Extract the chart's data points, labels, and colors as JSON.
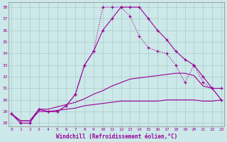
{
  "xlabel": "Windchill (Refroidissement éolien,°C)",
  "bg_color": "#cce8e8",
  "grid_color": "#aacccc",
  "line_color": "#990099",
  "hours": [
    0,
    1,
    2,
    3,
    4,
    5,
    6,
    7,
    8,
    9,
    10,
    11,
    12,
    13,
    14,
    15,
    16,
    17,
    18,
    19,
    20,
    21,
    22,
    23
  ],
  "line1": [
    28.8,
    28.0,
    28.0,
    29.2,
    29.0,
    29.0,
    29.5,
    30.5,
    33.0,
    34.2,
    38.0,
    38.0,
    38.0,
    37.2,
    35.5,
    34.5,
    34.2,
    34.0,
    33.0,
    31.5,
    33.0,
    31.5,
    31.0,
    30.0
  ],
  "line2": [
    28.8,
    28.0,
    28.0,
    29.2,
    29.0,
    29.0,
    29.5,
    30.5,
    33.0,
    34.2,
    36.0,
    37.0,
    38.0,
    38.0,
    38.0,
    37.0,
    36.0,
    35.2,
    34.2,
    33.5,
    33.0,
    32.0,
    31.0,
    31.0
  ],
  "line3": [
    28.8,
    28.2,
    28.2,
    29.2,
    29.2,
    29.4,
    29.6,
    29.8,
    30.1,
    30.5,
    30.8,
    31.2,
    31.5,
    31.8,
    31.9,
    32.0,
    32.1,
    32.2,
    32.3,
    32.3,
    32.1,
    31.2,
    31.0,
    30.0
  ],
  "line4": [
    28.8,
    28.2,
    28.2,
    29.0,
    29.0,
    29.1,
    29.2,
    29.3,
    29.5,
    29.6,
    29.7,
    29.8,
    29.9,
    29.9,
    29.9,
    29.9,
    29.9,
    30.0,
    30.0,
    30.0,
    30.0,
    29.9,
    29.9,
    30.0
  ],
  "yticks": [
    28,
    29,
    30,
    31,
    32,
    33,
    34,
    35,
    36,
    37,
    38
  ],
  "xticks": [
    0,
    1,
    2,
    3,
    4,
    5,
    6,
    7,
    8,
    9,
    10,
    11,
    12,
    13,
    14,
    15,
    16,
    17,
    18,
    19,
    20,
    21,
    22,
    23
  ]
}
